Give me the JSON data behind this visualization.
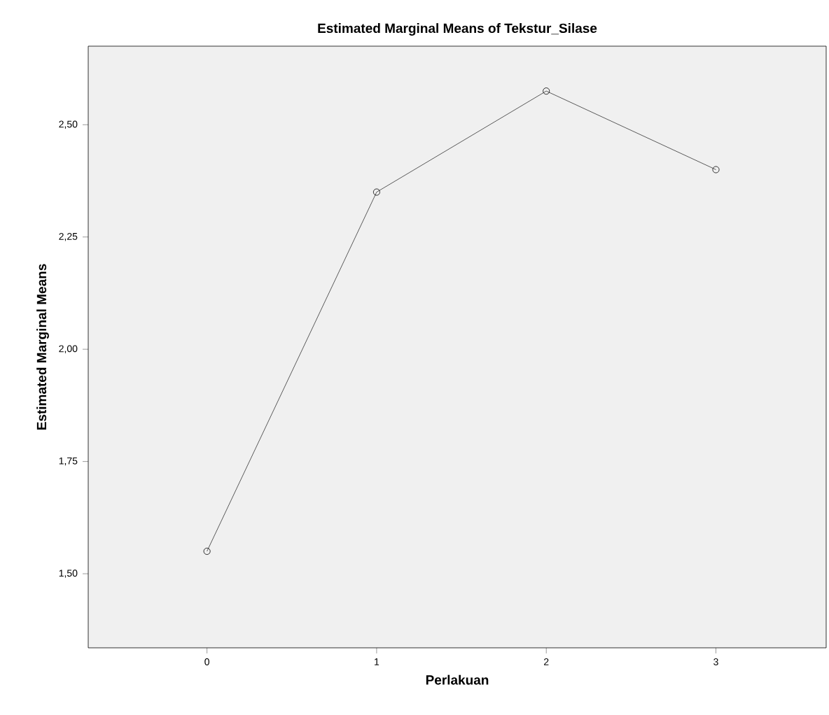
{
  "chart_data": {
    "type": "line",
    "title": "Estimated Marginal Means of Tekstur_Silase",
    "xlabel": "Perlakuan",
    "ylabel": "Estimated Marginal Means",
    "x": [
      0,
      1,
      2,
      3
    ],
    "series": [
      {
        "color": "#333333",
        "values": [
          1.55,
          2.35,
          2.575,
          2.4
        ]
      }
    ],
    "xlim": [
      -0.7,
      3.65
    ],
    "xticks": [
      0,
      1,
      2,
      3
    ],
    "ylim": [
      1.335,
      2.675
    ],
    "yticks": [
      {
        "value": 1.5,
        "label": "1,50"
      },
      {
        "value": 1.75,
        "label": "1,75"
      },
      {
        "value": 2.0,
        "label": "2,00"
      },
      {
        "value": 2.25,
        "label": "2,25"
      },
      {
        "value": 2.5,
        "label": "2,50"
      }
    ],
    "marker": "circle",
    "line_style": "solid",
    "grid": false
  }
}
